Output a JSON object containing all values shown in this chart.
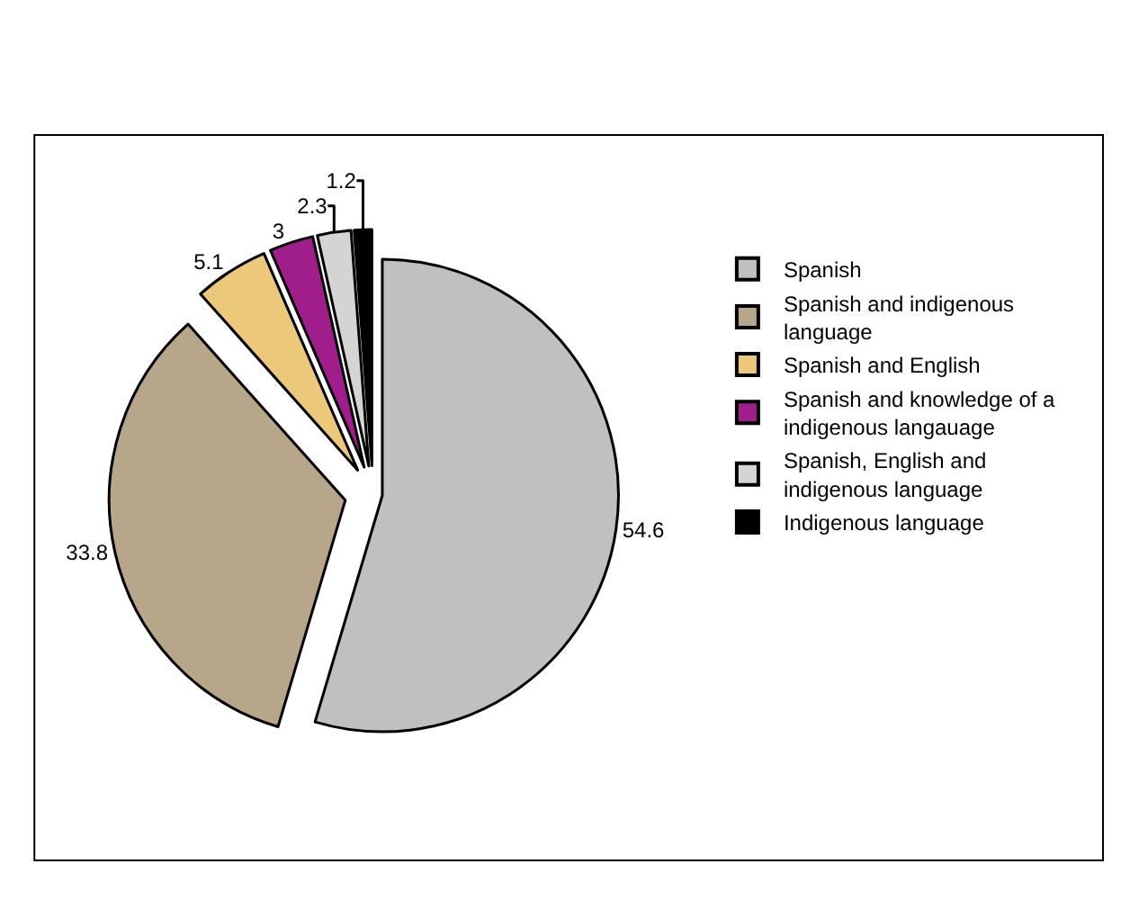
{
  "chart_data": {
    "type": "pie",
    "categories": [
      "Spanish",
      "Spanish and indigenous language",
      "Spanish and English",
      "Spanish and knowledge of a indigenous langauage",
      "Spanish, English and indigenous language",
      "Indigenous language"
    ],
    "values": [
      54.6,
      33.8,
      5.1,
      3,
      2.3,
      1.2
    ],
    "colors": [
      "#c0c0c0",
      "#b8a68a",
      "#ecc97a",
      "#a01e8c",
      "#d4d4d4",
      "#000000"
    ],
    "data_labels": true,
    "legend": "right"
  }
}
